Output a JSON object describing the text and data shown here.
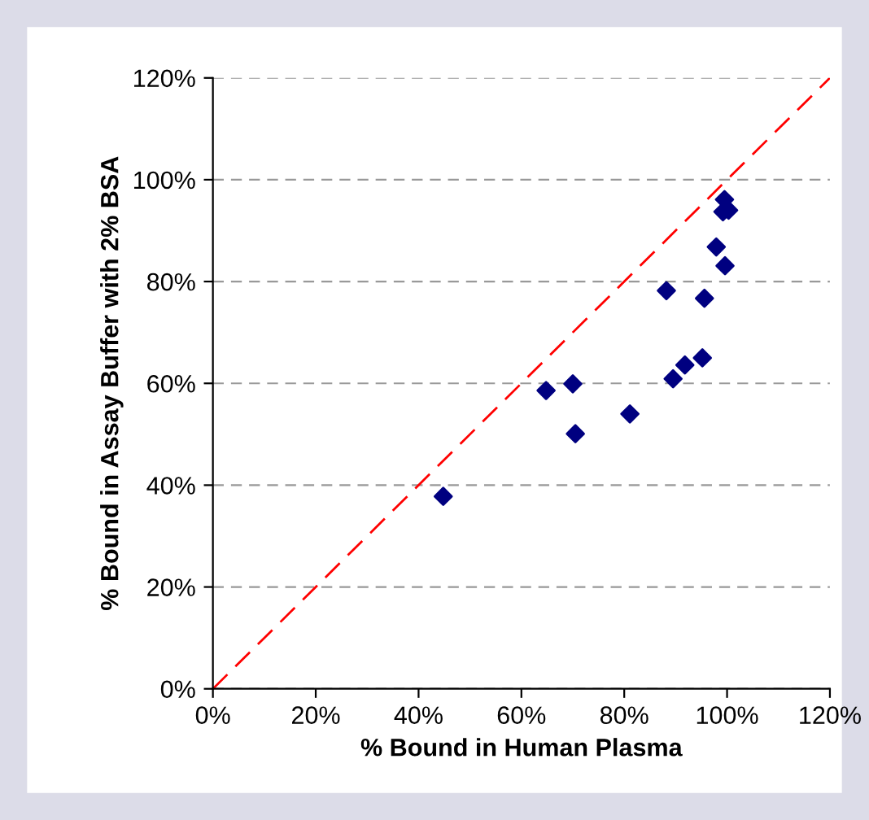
{
  "chart_data": {
    "type": "scatter",
    "xlabel": "% Bound in Human Plasma",
    "ylabel": "% Bound in Assay Buffer with 2% BSA",
    "x": [
      44.8,
      64.8,
      70.0,
      70.5,
      81.1,
      88.2,
      89.5,
      91.8,
      95.2,
      95.6,
      97.9,
      99.6,
      99.5,
      99.2,
      100.3
    ],
    "series": [
      {
        "color": "#000080",
        "marker": "diamond",
        "values": [
          37.8,
          58.6,
          59.9,
          50.1,
          54.0,
          78.2,
          60.9,
          63.6,
          65.0,
          76.7,
          86.8,
          83.1,
          96.1,
          93.7,
          94.0
        ]
      },
      {
        "type": "line",
        "color": "#ff0000",
        "line_style": "dashed",
        "marker": "none",
        "x": [
          0,
          120
        ],
        "values": [
          0,
          120
        ]
      }
    ],
    "xlim": [
      0,
      120
    ],
    "ylim": [
      0,
      120
    ],
    "xticks": [
      {
        "value": 0,
        "label": "0%"
      },
      {
        "value": 20,
        "label": "20%"
      },
      {
        "value": 40,
        "label": "40%"
      },
      {
        "value": 60,
        "label": "60%"
      },
      {
        "value": 80,
        "label": "80%"
      },
      {
        "value": 100,
        "label": "100%"
      },
      {
        "value": 120,
        "label": "120%"
      }
    ],
    "yticks": [
      {
        "value": 0,
        "label": "0%"
      },
      {
        "value": 20,
        "label": "20%"
      },
      {
        "value": 40,
        "label": "40%"
      },
      {
        "value": 60,
        "label": "60%"
      },
      {
        "value": 80,
        "label": "80%"
      },
      {
        "value": 100,
        "label": "100%"
      },
      {
        "value": 120,
        "label": "120%"
      }
    ],
    "grid": "y",
    "legend": false
  }
}
